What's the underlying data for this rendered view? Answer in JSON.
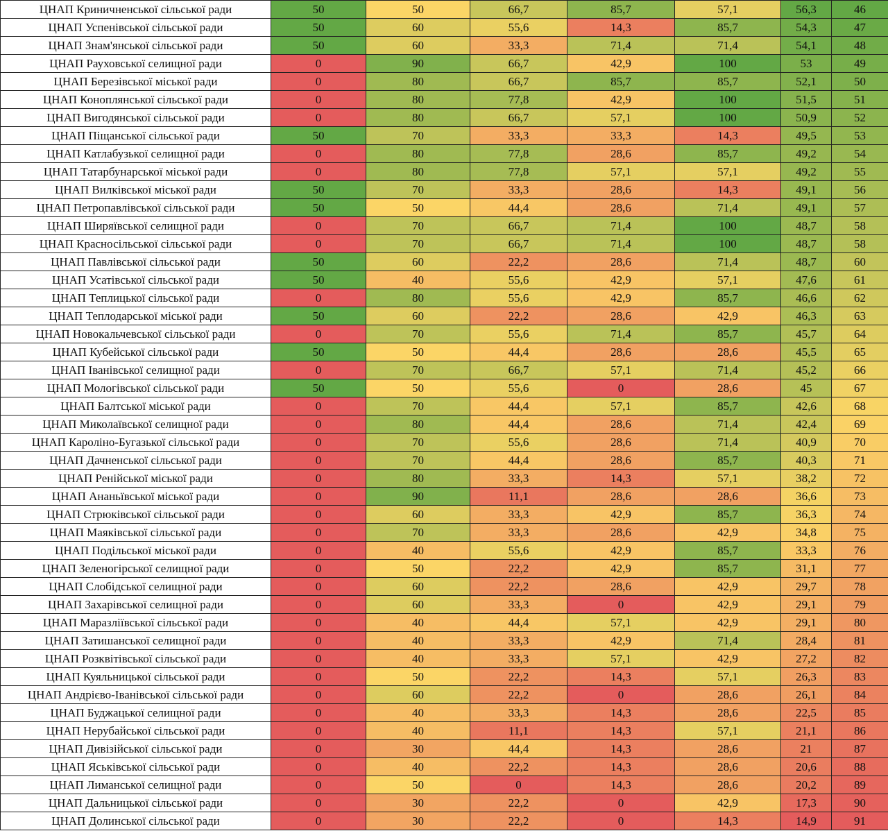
{
  "table": {
    "rows": [
      {
        "name": "ЦНАП Криничненської сільської ради",
        "values": [
          "50",
          "50",
          "66,7",
          "85,7",
          "57,1",
          "56,3",
          "46"
        ]
      },
      {
        "name": "ЦНАП Успенівської сільської ради",
        "values": [
          "50",
          "60",
          "55,6",
          "14,3",
          "85,7",
          "54,3",
          "47"
        ]
      },
      {
        "name": "ЦНАП Знам'янської сільської ради",
        "values": [
          "50",
          "60",
          "33,3",
          "71,4",
          "71,4",
          "54,1",
          "48"
        ]
      },
      {
        "name": "ЦНАП Рауховської селищної ради",
        "values": [
          "0",
          "90",
          "66,7",
          "42,9",
          "100",
          "53",
          "49"
        ]
      },
      {
        "name": "ЦНАП Березівської міської ради",
        "values": [
          "0",
          "80",
          "66,7",
          "85,7",
          "85,7",
          "52,1",
          "50"
        ]
      },
      {
        "name": "ЦНАП Коноплянської сільської ради",
        "values": [
          "0",
          "80",
          "77,8",
          "42,9",
          "100",
          "51,5",
          "51"
        ]
      },
      {
        "name": "ЦНАП Вигодянської сільської ради",
        "values": [
          "0",
          "80",
          "66,7",
          "57,1",
          "100",
          "50,9",
          "52"
        ]
      },
      {
        "name": "ЦНАП Піщанської сільської ради",
        "values": [
          "50",
          "70",
          "33,3",
          "33,3",
          "14,3",
          "49,5",
          "53"
        ]
      },
      {
        "name": "ЦНАП Катлабузької селищної ради",
        "values": [
          "0",
          "80",
          "77,8",
          "28,6",
          "85,7",
          "49,2",
          "54"
        ]
      },
      {
        "name": "ЦНАП Татарбунарської міської ради",
        "values": [
          "0",
          "80",
          "77,8",
          "57,1",
          "57,1",
          "49,2",
          "55"
        ]
      },
      {
        "name": "ЦНАП Вилківської міської ради",
        "values": [
          "50",
          "70",
          "33,3",
          "28,6",
          "14,3",
          "49,1",
          "56"
        ]
      },
      {
        "name": "ЦНАП Петропавлівської сільської ради",
        "values": [
          "50",
          "50",
          "44,4",
          "28,6",
          "71,4",
          "49,1",
          "57"
        ]
      },
      {
        "name": "ЦНАП Ширяївської селищної ради",
        "values": [
          "0",
          "70",
          "66,7",
          "71,4",
          "100",
          "48,7",
          "58"
        ]
      },
      {
        "name": "ЦНАП Красносільської сільської ради",
        "values": [
          "0",
          "70",
          "66,7",
          "71,4",
          "100",
          "48,7",
          "58"
        ]
      },
      {
        "name": "ЦНАП Павлівської сільської ради",
        "values": [
          "50",
          "60",
          "22,2",
          "28,6",
          "71,4",
          "48,7",
          "60"
        ]
      },
      {
        "name": "ЦНАП Усатівської сільської ради",
        "values": [
          "50",
          "40",
          "55,6",
          "42,9",
          "57,1",
          "47,6",
          "61"
        ]
      },
      {
        "name": "ЦНАП Теплицької сільської ради",
        "values": [
          "0",
          "80",
          "55,6",
          "42,9",
          "85,7",
          "46,6",
          "62"
        ]
      },
      {
        "name": "ЦНАП Теплодарської міської ради",
        "values": [
          "50",
          "60",
          "22,2",
          "28,6",
          "42,9",
          "46,3",
          "63"
        ]
      },
      {
        "name": "ЦНАП Новокальчевської сільської ради",
        "values": [
          "0",
          "70",
          "55,6",
          "71,4",
          "85,7",
          "45,7",
          "64"
        ]
      },
      {
        "name": "ЦНАП Кубейської сільської ради",
        "values": [
          "50",
          "50",
          "44,4",
          "28,6",
          "28,6",
          "45,5",
          "65"
        ]
      },
      {
        "name": "ЦНАП Іванівської селищної ради",
        "values": [
          "0",
          "70",
          "66,7",
          "57,1",
          "71,4",
          "45,2",
          "66"
        ]
      },
      {
        "name": "ЦНАП Мологівської сільської ради",
        "values": [
          "50",
          "50",
          "55,6",
          "0",
          "28,6",
          "45",
          "67"
        ]
      },
      {
        "name": "ЦНАП Балтської міської ради",
        "values": [
          "0",
          "70",
          "44,4",
          "57,1",
          "85,7",
          "42,6",
          "68"
        ]
      },
      {
        "name": "ЦНАП Миколаївської селищної ради",
        "values": [
          "0",
          "80",
          "44,4",
          "28,6",
          "71,4",
          "42,4",
          "69"
        ]
      },
      {
        "name": "ЦНАП Кароліно-Бугазької сільської ради",
        "values": [
          "0",
          "70",
          "55,6",
          "28,6",
          "71,4",
          "40,9",
          "70"
        ]
      },
      {
        "name": "ЦНАП Дачненської сільської ради",
        "values": [
          "0",
          "70",
          "44,4",
          "28,6",
          "85,7",
          "40,3",
          "71"
        ]
      },
      {
        "name": "ЦНАП Ренійської міської ради",
        "values": [
          "0",
          "80",
          "33,3",
          "14,3",
          "57,1",
          "38,2",
          "72"
        ]
      },
      {
        "name": "ЦНАП Ананьївської міської ради",
        "values": [
          "0",
          "90",
          "11,1",
          "28,6",
          "28,6",
          "36,6",
          "73"
        ]
      },
      {
        "name": "ЦНАП Стрюківської сільської ради",
        "values": [
          "0",
          "60",
          "33,3",
          "42,9",
          "85,7",
          "36,3",
          "74"
        ]
      },
      {
        "name": "ЦНАП Маяківської сільської ради",
        "values": [
          "0",
          "70",
          "33,3",
          "28,6",
          "42,9",
          "34,8",
          "75"
        ]
      },
      {
        "name": "ЦНАП Подільської міської ради",
        "values": [
          "0",
          "40",
          "55,6",
          "42,9",
          "85,7",
          "33,3",
          "76"
        ]
      },
      {
        "name": "ЦНАП Зеленогірської селищної ради",
        "values": [
          "0",
          "50",
          "22,2",
          "42,9",
          "85,7",
          "31,1",
          "77"
        ]
      },
      {
        "name": "ЦНАП Слобідської селищної ради",
        "values": [
          "0",
          "60",
          "22,2",
          "28,6",
          "42,9",
          "29,7",
          "78"
        ]
      },
      {
        "name": "ЦНАП Захарівської селищної ради",
        "values": [
          "0",
          "60",
          "33,3",
          "0",
          "42,9",
          "29,1",
          "79"
        ]
      },
      {
        "name": "ЦНАП Маразліївської сільської ради",
        "values": [
          "0",
          "40",
          "44,4",
          "57,1",
          "42,9",
          "29,1",
          "80"
        ]
      },
      {
        "name": "ЦНАП Затишанської селищної ради",
        "values": [
          "0",
          "40",
          "33,3",
          "42,9",
          "71,4",
          "28,4",
          "81"
        ]
      },
      {
        "name": "ЦНАП Розквітівської сільської ради",
        "values": [
          "0",
          "40",
          "33,3",
          "57,1",
          "42,9",
          "27,2",
          "82"
        ]
      },
      {
        "name": "ЦНАП Куяльницької сільської ради",
        "values": [
          "0",
          "50",
          "22,2",
          "14,3",
          "57,1",
          "26,3",
          "83"
        ]
      },
      {
        "name": "ЦНАП Андрієво-Іванівської сільської ради",
        "values": [
          "0",
          "60",
          "22,2",
          "0",
          "28,6",
          "26,1",
          "84"
        ]
      },
      {
        "name": "ЦНАП Буджацької селищної ради",
        "values": [
          "0",
          "40",
          "33,3",
          "14,3",
          "28,6",
          "22,5",
          "85"
        ]
      },
      {
        "name": "ЦНАП Нерубайської сільської ради",
        "values": [
          "0",
          "40",
          "11,1",
          "14,3",
          "57,1",
          "21,1",
          "86"
        ]
      },
      {
        "name": "ЦНАП Дивізійської сільської ради",
        "values": [
          "0",
          "30",
          "44,4",
          "14,3",
          "28,6",
          "21",
          "87"
        ]
      },
      {
        "name": "ЦНАП Яськівської сільської ради",
        "values": [
          "0",
          "40",
          "22,2",
          "14,3",
          "28,6",
          "20,6",
          "88"
        ]
      },
      {
        "name": "ЦНАП Лиманської селищної ради",
        "values": [
          "0",
          "50",
          "0",
          "14,3",
          "28,6",
          "20,2",
          "89"
        ]
      },
      {
        "name": "ЦНАП Дальницької сільської ради",
        "values": [
          "0",
          "30",
          "22,2",
          "0",
          "42,9",
          "17,3",
          "90"
        ]
      },
      {
        "name": "ЦНАП Долинської сільської ради",
        "values": [
          "0",
          "30",
          "22,2",
          "0",
          "14,3",
          "14,9",
          "91"
        ]
      }
    ],
    "color_scale": {
      "low": "#e45c5c",
      "mid": "#fbd566",
      "high": "#63a845"
    },
    "column_ranges": [
      [
        0,
        50
      ],
      [
        0,
        100
      ],
      [
        0,
        100
      ],
      [
        0,
        100
      ],
      [
        0,
        100
      ],
      [
        14.9,
        56.3
      ],
      [
        46,
        91
      ]
    ]
  }
}
